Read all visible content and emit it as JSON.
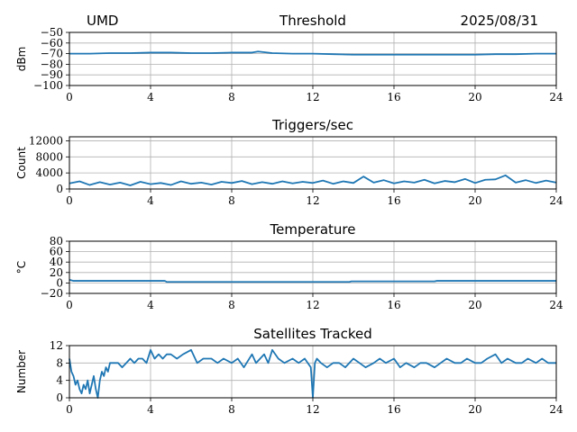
{
  "header": {
    "left": "UMD",
    "right": "2025/08/31"
  },
  "colors": {
    "line": "#1f77b4",
    "grid": "#b0b0b0",
    "axis": "#000000"
  },
  "chart_data": [
    {
      "type": "line",
      "title": "Threshold",
      "xlabel": "",
      "ylabel": "dBm",
      "xlim": [
        0,
        24
      ],
      "ylim": [
        -100,
        -50
      ],
      "x_ticks": [
        "0",
        "4",
        "8",
        "12",
        "16",
        "20",
        "24"
      ],
      "y_ticks": [
        "−50",
        "−60",
        "−70",
        "−80",
        "−90",
        "−100"
      ],
      "y_tick_values": [
        -50,
        -60,
        -70,
        -80,
        -90,
        -100
      ],
      "grid": true,
      "series": [
        {
          "x": [
            0,
            1,
            2,
            3,
            4,
            5,
            6,
            7,
            8,
            9,
            9.3,
            10,
            11,
            12,
            13,
            14,
            15,
            16,
            17,
            18,
            19,
            20,
            21,
            22,
            23,
            24
          ],
          "values": [
            -70,
            -70,
            -69.5,
            -69.5,
            -69,
            -69,
            -69.5,
            -69.5,
            -69,
            -69,
            -68,
            -69.5,
            -70,
            -70,
            -70.5,
            -71,
            -71,
            -71,
            -71,
            -71,
            -71,
            -71,
            -70.5,
            -70.5,
            -70,
            -70
          ]
        }
      ]
    },
    {
      "type": "line",
      "title": "Triggers/sec",
      "xlabel": "",
      "ylabel": "Count",
      "xlim": [
        0,
        24
      ],
      "ylim": [
        0,
        13000
      ],
      "x_ticks": [
        "0",
        "4",
        "8",
        "12",
        "16",
        "20",
        "24"
      ],
      "y_ticks": [
        "0",
        "4000",
        "8000",
        "12000"
      ],
      "y_tick_values": [
        0,
        4000,
        8000,
        12000
      ],
      "grid": true,
      "series": [
        {
          "x": [
            0,
            0.5,
            1,
            1.5,
            2,
            2.5,
            3,
            3.5,
            4,
            4.5,
            5,
            5.5,
            6,
            6.5,
            7,
            7.5,
            8,
            8.5,
            9,
            9.5,
            10,
            10.5,
            11,
            11.5,
            12,
            12.5,
            13,
            13.5,
            14,
            14.5,
            15,
            15.5,
            16,
            16.5,
            17,
            17.5,
            18,
            18.5,
            19,
            19.5,
            20,
            20.5,
            21,
            21.5,
            22,
            22.5,
            23,
            23.5,
            24
          ],
          "values": [
            1400,
            1900,
            1000,
            1700,
            1100,
            1600,
            900,
            1800,
            1200,
            1500,
            1000,
            1900,
            1300,
            1600,
            1100,
            1800,
            1500,
            2000,
            1200,
            1700,
            1300,
            1900,
            1400,
            1800,
            1500,
            2100,
            1300,
            1900,
            1500,
            3100,
            1600,
            2200,
            1400,
            1900,
            1600,
            2300,
            1400,
            2000,
            1700,
            2500,
            1500,
            2300,
            2400,
            3400,
            1600,
            2200,
            1500,
            2100,
            1600
          ]
        }
      ]
    },
    {
      "type": "line",
      "title": "Temperature",
      "xlabel": "",
      "ylabel": "°C",
      "xlim": [
        0,
        24
      ],
      "ylim": [
        -20,
        80
      ],
      "x_ticks": [
        "0",
        "4",
        "8",
        "12",
        "16",
        "20",
        "24"
      ],
      "y_ticks": [
        "−20",
        "0",
        "20",
        "40",
        "60",
        "80"
      ],
      "y_tick_values": [
        -20,
        0,
        20,
        40,
        60,
        80
      ],
      "grid": true,
      "series": [
        {
          "x": [
            0,
            0.2,
            4.7,
            4.8,
            13.8,
            13.9,
            18,
            18.1,
            24
          ],
          "values": [
            6,
            4,
            4,
            2,
            2,
            3,
            3,
            4,
            4
          ]
        }
      ]
    },
    {
      "type": "line",
      "title": "Satellites Tracked",
      "xlabel": "",
      "ylabel": "Number",
      "xlim": [
        0,
        24
      ],
      "ylim": [
        0,
        12
      ],
      "x_ticks": [
        "0",
        "4",
        "8",
        "12",
        "16",
        "20",
        "24"
      ],
      "y_ticks": [
        "0",
        "4",
        "8",
        "12"
      ],
      "y_tick_values": [
        0,
        4,
        8,
        12
      ],
      "grid": true,
      "series": [
        {
          "x": [
            0,
            0.1,
            0.2,
            0.3,
            0.4,
            0.5,
            0.6,
            0.7,
            0.8,
            0.9,
            1.0,
            1.1,
            1.2,
            1.3,
            1.4,
            1.5,
            1.6,
            1.7,
            1.8,
            1.9,
            2.0,
            2.2,
            2.4,
            2.6,
            2.8,
            3.0,
            3.2,
            3.4,
            3.6,
            3.8,
            4.0,
            4.2,
            4.4,
            4.6,
            4.8,
            5.0,
            5.3,
            5.6,
            6.0,
            6.3,
            6.6,
            7.0,
            7.3,
            7.6,
            8.0,
            8.3,
            8.6,
            9.0,
            9.2,
            9.4,
            9.6,
            9.8,
            10.0,
            10.3,
            10.6,
            11.0,
            11.3,
            11.6,
            11.9,
            12.0,
            12.1,
            12.2,
            12.4,
            12.7,
            13.0,
            13.3,
            13.6,
            14.0,
            14.3,
            14.6,
            15.0,
            15.3,
            15.6,
            16.0,
            16.3,
            16.6,
            17.0,
            17.3,
            17.6,
            18.0,
            18.3,
            18.6,
            19.0,
            19.3,
            19.6,
            20.0,
            20.3,
            20.6,
            21.0,
            21.3,
            21.6,
            22.0,
            22.3,
            22.6,
            23.0,
            23.3,
            23.6,
            24.0
          ],
          "values": [
            9,
            6,
            5,
            3,
            4,
            2,
            1,
            3,
            2,
            4,
            1,
            3,
            5,
            2,
            0,
            4,
            6,
            5,
            7,
            6,
            8,
            8,
            8,
            7,
            8,
            9,
            8,
            9,
            9,
            8,
            11,
            9,
            10,
            9,
            10,
            10,
            9,
            10,
            11,
            8,
            9,
            9,
            8,
            9,
            8,
            9,
            7,
            10,
            8,
            9,
            10,
            8,
            11,
            9,
            8,
            9,
            8,
            9,
            7,
            0,
            8,
            9,
            8,
            7,
            8,
            8,
            7,
            9,
            8,
            7,
            8,
            9,
            8,
            9,
            7,
            8,
            7,
            8,
            8,
            7,
            8,
            9,
            8,
            8,
            9,
            8,
            8,
            9,
            10,
            8,
            9,
            8,
            8,
            9,
            8,
            9,
            8,
            8
          ]
        }
      ]
    }
  ]
}
